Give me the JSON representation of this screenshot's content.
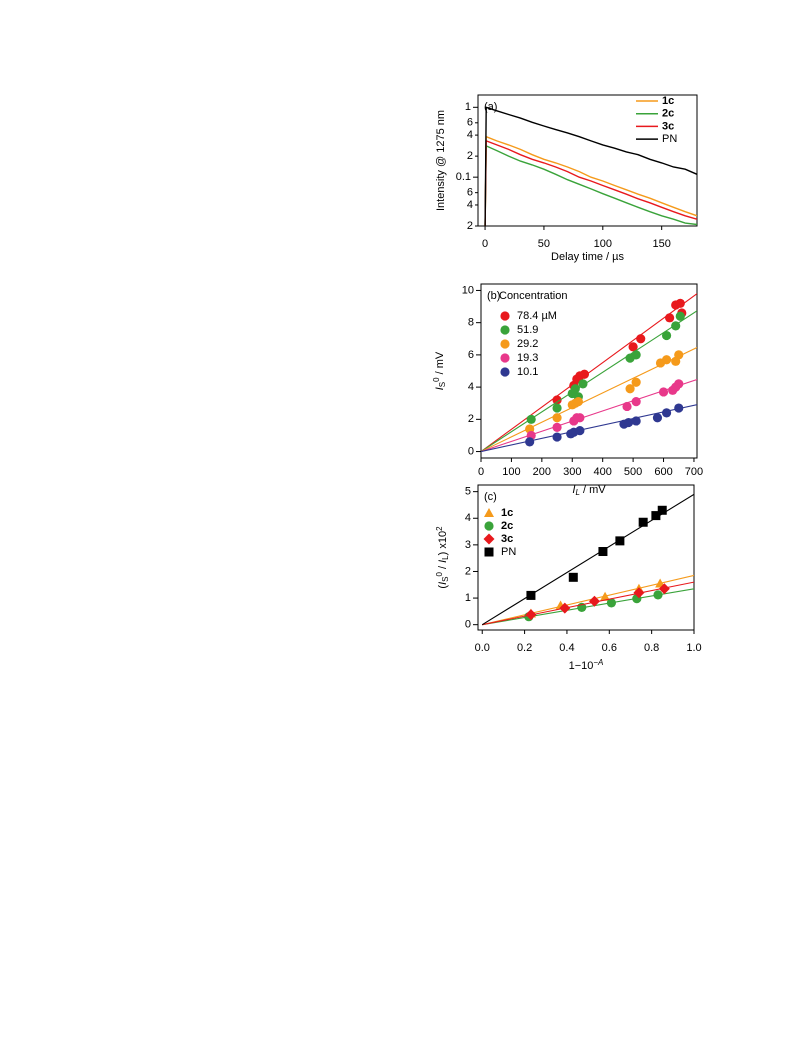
{
  "chart_data": [
    {
      "type": "line",
      "annotation": "(a)",
      "log_y": true,
      "x_label": [
        {
          "text": "Delay time  /  µs",
          "style": ""
        }
      ],
      "y_label": [
        {
          "text": "Intensity @ 1275 nm",
          "style": ""
        }
      ],
      "xlim": [
        -6,
        180
      ],
      "ylim": [
        0.02,
        1.5
      ],
      "xticks": [
        0,
        50,
        100,
        150
      ],
      "yticks": [
        1,
        {
          "value": 0.6,
          "label": "6"
        },
        {
          "value": 0.4,
          "label": "4"
        },
        {
          "value": 0.2,
          "label": "2"
        },
        0.1,
        {
          "value": 0.06,
          "label": "6"
        },
        {
          "value": 0.04,
          "label": "4"
        },
        {
          "value": 0.02,
          "label": "2"
        }
      ],
      "legend": "upper right",
      "x": [
        0,
        1,
        10,
        20,
        30,
        40,
        50,
        60,
        70,
        80,
        90,
        100,
        110,
        120,
        130,
        140,
        150,
        160,
        170,
        180
      ],
      "series": [
        {
          "name": "1c",
          "bold": true,
          "color": "#f59a1b",
          "values": [
            0.02,
            0.38,
            0.33,
            0.29,
            0.25,
            0.21,
            0.18,
            0.16,
            0.14,
            0.12,
            0.1,
            0.088,
            0.076,
            0.066,
            0.057,
            0.05,
            0.043,
            0.037,
            0.032,
            0.028
          ]
        },
        {
          "name": "2c",
          "bold": true,
          "color": "#3aa33a",
          "values": [
            0.02,
            0.28,
            0.24,
            0.2,
            0.17,
            0.15,
            0.13,
            0.11,
            0.092,
            0.079,
            0.068,
            0.058,
            0.05,
            0.043,
            0.037,
            0.032,
            0.028,
            0.025,
            0.022,
            0.021
          ]
        },
        {
          "name": "3c",
          "bold": true,
          "color": "#e8191d",
          "values": [
            0.02,
            0.33,
            0.29,
            0.25,
            0.21,
            0.18,
            0.16,
            0.14,
            0.12,
            0.1,
            0.088,
            0.076,
            0.066,
            0.057,
            0.049,
            0.043,
            0.037,
            0.032,
            0.028,
            0.025
          ]
        },
        {
          "name": "PN",
          "bold": false,
          "color": "#000000",
          "values": [
            0.02,
            1,
            0.89,
            0.79,
            0.7,
            0.61,
            0.54,
            0.48,
            0.43,
            0.38,
            0.33,
            0.29,
            0.26,
            0.23,
            0.21,
            0.18,
            0.16,
            0.14,
            0.13,
            0.11
          ]
        }
      ]
    },
    {
      "type": "scatter",
      "annotation": "(b)",
      "legend_title": "Concentration",
      "marker": "circle",
      "x_label": [
        {
          "text": "I",
          "style": "italic"
        },
        {
          "text": "L",
          "style": "sub italic"
        },
        {
          "text": "  /  mV",
          "style": ""
        }
      ],
      "y_label": [
        {
          "text": "I",
          "style": "italic"
        },
        {
          "text": "S",
          "style": "sub"
        },
        {
          "text": "0",
          "style": "sup"
        },
        {
          "text": "  /  mV",
          "style": ""
        }
      ],
      "xlim": [
        0,
        710
      ],
      "ylim": [
        -0.4,
        10.4
      ],
      "xticks": [
        0,
        100,
        200,
        300,
        400,
        500,
        600,
        700
      ],
      "yticks": [
        0,
        2,
        4,
        6,
        8,
        10
      ],
      "legend": "upper left",
      "series": [
        {
          "name": "78.4 µM",
          "color": "#e8191d",
          "fit_slope": 0.0138,
          "x": [
            250,
            305,
            315,
            325,
            340,
            500,
            525,
            620,
            640,
            655,
            660
          ],
          "values": [
            3.2,
            4.1,
            4.5,
            4.7,
            4.8,
            6.5,
            7.0,
            8.3,
            9.1,
            9.2,
            8.6
          ]
        },
        {
          "name": "51.9",
          "color": "#3aa33a",
          "fit_slope": 0.0123,
          "x": [
            165,
            250,
            300,
            310,
            320,
            335,
            490,
            510,
            610,
            640,
            655
          ],
          "values": [
            2.0,
            2.7,
            3.6,
            3.9,
            3.4,
            4.2,
            5.8,
            6.0,
            7.2,
            7.8,
            8.4
          ]
        },
        {
          "name": "29.2",
          "color": "#f59a1b",
          "fit_slope": 0.0091,
          "x": [
            160,
            250,
            300,
            310,
            320,
            490,
            510,
            590,
            610,
            640,
            650
          ],
          "values": [
            1.4,
            2.1,
            2.9,
            3.0,
            3.1,
            3.9,
            4.3,
            5.5,
            5.7,
            5.6,
            6.0
          ]
        },
        {
          "name": "19.3",
          "color": "#e8388a",
          "fit_slope": 0.0063,
          "x": [
            165,
            250,
            305,
            315,
            325,
            480,
            510,
            600,
            630,
            640,
            650
          ],
          "values": [
            1.0,
            1.5,
            1.9,
            2.1,
            2.1,
            2.8,
            3.1,
            3.7,
            3.8,
            4.0,
            4.2
          ]
        },
        {
          "name": "10.1",
          "color": "#2f3891",
          "fit_slope": 0.0041,
          "x": [
            160,
            250,
            295,
            305,
            325,
            470,
            485,
            510,
            580,
            610,
            650
          ],
          "values": [
            0.6,
            0.9,
            1.1,
            1.2,
            1.3,
            1.7,
            1.8,
            1.9,
            2.1,
            2.4,
            2.7
          ]
        }
      ]
    },
    {
      "type": "scatter",
      "annotation": "(c)",
      "x_label": [
        {
          "text": "1−10",
          "style": ""
        },
        {
          "text": "−A",
          "style": "sup italic"
        }
      ],
      "y_label": [
        {
          "text": "(",
          "style": ""
        },
        {
          "text": "I",
          "style": "italic"
        },
        {
          "text": "S",
          "style": "sub"
        },
        {
          "text": "0",
          "style": "sup"
        },
        {
          "text": " / ",
          "style": ""
        },
        {
          "text": "I",
          "style": "italic"
        },
        {
          "text": "L",
          "style": "sub"
        },
        {
          "text": ") x10",
          "style": ""
        },
        {
          "text": "2",
          "style": "sup"
        }
      ],
      "xlim": [
        -0.02,
        1.0
      ],
      "ylim": [
        -0.2,
        5.25
      ],
      "xticks": [
        {
          "value": 0,
          "label": "0.0"
        },
        0.2,
        0.4,
        0.6,
        0.8,
        {
          "value": 1,
          "label": "1.0"
        }
      ],
      "yticks": [
        0,
        1,
        2,
        3,
        4,
        5
      ],
      "legend": "upper left",
      "series": [
        {
          "name": "1c",
          "bold": true,
          "marker": "triangle",
          "color": "#f59a1b",
          "fit_slope": 1.85,
          "x": [
            0.23,
            0.37,
            0.58,
            0.74,
            0.84
          ],
          "values": [
            0.42,
            0.72,
            1.05,
            1.35,
            1.55
          ]
        },
        {
          "name": "2c",
          "bold": true,
          "marker": "circle",
          "color": "#3aa33a",
          "fit_slope": 1.35,
          "x": [
            0.22,
            0.47,
            0.61,
            0.73,
            0.83
          ],
          "values": [
            0.3,
            0.65,
            0.82,
            0.98,
            1.12
          ]
        },
        {
          "name": "3c",
          "bold": true,
          "marker": "diamond",
          "color": "#e8191d",
          "fit_slope": 1.6,
          "x": [
            0.23,
            0.39,
            0.53,
            0.74,
            0.86
          ],
          "values": [
            0.38,
            0.62,
            0.88,
            1.2,
            1.35
          ]
        },
        {
          "name": "PN",
          "bold": false,
          "marker": "square",
          "color": "#000000",
          "fit_slope": 4.9,
          "x": [
            0.23,
            0.43,
            0.57,
            0.65,
            0.76,
            0.82,
            0.85
          ],
          "values": [
            1.1,
            1.78,
            2.75,
            3.15,
            3.85,
            4.1,
            4.3
          ]
        }
      ]
    }
  ]
}
